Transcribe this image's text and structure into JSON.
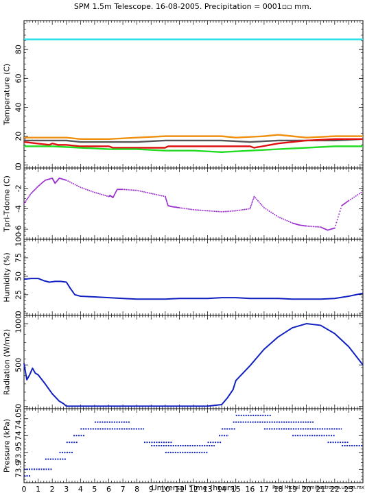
{
  "title": "SPM 1.5m Telescope. 16-08-2005. Precipitation = 0001▫▫ mm.",
  "credit": "Raul Michel (rmm@astrosen.unam.mx)",
  "colors": {
    "cyan": "#22e0e8",
    "orange": "#f09010",
    "gray": "#555555",
    "red": "#dd1111",
    "green": "#22dd22",
    "purple": "#9a30d0",
    "blue": "#1020c0"
  },
  "chart_data": [
    {
      "type": "line",
      "ylabel": "Temperature (C)",
      "ylim": [
        -2,
        100
      ],
      "yticks": [
        0,
        20,
        40,
        60,
        80
      ],
      "xlim": [
        0,
        24
      ],
      "series": [
        {
          "color_key": "cyan",
          "x": [
            0,
            24
          ],
          "y": [
            87,
            87
          ]
        },
        {
          "color_key": "orange",
          "x": [
            0,
            3,
            4,
            6,
            8,
            10,
            12,
            14,
            15,
            17,
            18,
            19,
            20,
            22,
            24
          ],
          "y": [
            19,
            19,
            18,
            18,
            19,
            20,
            20,
            20,
            19,
            20,
            21,
            20,
            19,
            20,
            20
          ]
        },
        {
          "color_key": "gray",
          "x": [
            0,
            3,
            4,
            6,
            8,
            10,
            12,
            14,
            16,
            18,
            20,
            22,
            24
          ],
          "y": [
            17,
            17,
            16,
            16,
            16,
            17,
            17,
            17,
            16,
            17,
            17,
            17,
            18
          ]
        },
        {
          "color_key": "red",
          "x": [
            0,
            1.8,
            2,
            2.4,
            3,
            4,
            6,
            6.3,
            7,
            10,
            10.2,
            12,
            14,
            16,
            16.3,
            18,
            20,
            22,
            24
          ],
          "y": [
            16,
            14,
            15,
            14,
            14,
            13,
            13,
            12,
            12,
            12,
            13,
            13,
            13,
            13,
            12,
            15,
            17,
            18,
            18
          ]
        },
        {
          "color_key": "green",
          "x": [
            0,
            2,
            4,
            6,
            8,
            10,
            12,
            14,
            16,
            18,
            20,
            22,
            24
          ],
          "y": [
            13,
            13,
            12,
            11,
            11,
            10,
            10,
            9,
            10,
            11,
            12,
            13,
            13
          ]
        }
      ]
    },
    {
      "type": "scatter",
      "ylabel": "Tpri-Tdome (C)",
      "ylim": [
        -7,
        0
      ],
      "yticks": [
        0,
        -2,
        -4,
        -6
      ],
      "xlim": [
        0,
        24
      ],
      "series": [
        {
          "color_key": "purple",
          "x": [
            0,
            0.5,
            1,
            1.5,
            2,
            2.2,
            2.5,
            3,
            4,
            5,
            6,
            6.1,
            6.3,
            6.6,
            7,
            8,
            9,
            10,
            10.2,
            10.5,
            11,
            12,
            13,
            14,
            15,
            16,
            16.3,
            17,
            18,
            19,
            19.5,
            20,
            21,
            21.5,
            22,
            22.5,
            23,
            24
          ],
          "y": [
            -3.5,
            -2.5,
            -1.8,
            -1.2,
            -1.0,
            -1.5,
            -1.0,
            -1.2,
            -1.9,
            -2.4,
            -2.8,
            -2.7,
            -2.9,
            -2.1,
            -2.1,
            -2.2,
            -2.5,
            -2.8,
            -3.7,
            -3.8,
            -3.9,
            -4.1,
            -4.2,
            -4.3,
            -4.2,
            -4.0,
            -2.8,
            -3.9,
            -4.8,
            -5.4,
            -5.6,
            -5.7,
            -5.8,
            -6.1,
            -5.9,
            -3.7,
            -3.2,
            -2.3
          ]
        }
      ]
    },
    {
      "type": "line",
      "ylabel": "Humidity (%)",
      "ylim": [
        -3,
        100
      ],
      "yticks": [
        0,
        25,
        50,
        75,
        100
      ],
      "xlim": [
        0,
        24
      ],
      "series": [
        {
          "color_key": "blue",
          "x": [
            0,
            0.5,
            1,
            1.4,
            1.8,
            2.2,
            2.6,
            3.0,
            3.3,
            3.6,
            4,
            5,
            6,
            7,
            8,
            9,
            10,
            11,
            12,
            13,
            14,
            15,
            16,
            17,
            18,
            19,
            20,
            21,
            22,
            23,
            24
          ],
          "y": [
            46,
            47,
            47,
            44,
            42,
            43,
            43,
            42,
            33,
            25,
            23,
            22,
            21,
            20,
            19,
            19,
            19,
            20,
            20,
            20,
            21,
            21,
            20,
            20,
            20,
            19,
            19,
            19,
            20,
            23,
            27
          ]
        }
      ]
    },
    {
      "type": "line",
      "ylabel": "Radiation (W/m2)",
      "ylim": [
        -30,
        1100
      ],
      "yticks": [
        0,
        500,
        1000
      ],
      "xlim": [
        0,
        24
      ],
      "series": [
        {
          "color_key": "blue",
          "x": [
            0,
            0.2,
            0.4,
            0.6,
            0.8,
            1.0,
            1.5,
            2.0,
            2.5,
            2.8,
            3.0,
            5,
            8,
            11,
            13,
            14,
            14.4,
            14.8,
            15,
            16,
            17,
            18,
            19,
            20,
            21,
            22,
            23,
            24
          ],
          "y": [
            520,
            320,
            380,
            460,
            400,
            380,
            270,
            150,
            60,
            30,
            0,
            0,
            0,
            0,
            0,
            20,
            100,
            200,
            310,
            490,
            690,
            840,
            950,
            1000,
            980,
            880,
            720,
            500
          ]
        }
      ]
    },
    {
      "type": "step",
      "ylabel": "Pressure (kPa)",
      "ylim": [
        73.86,
        74.08
      ],
      "yticks": [
        73.9,
        73.95,
        74.0,
        74.05
      ],
      "ytick_labels": [
        "73.9",
        "73.95",
        "74",
        "74.05"
      ],
      "xlabel": "Universal Time (hours)",
      "xlim": [
        0,
        24
      ],
      "xticks": [
        0,
        1,
        2,
        3,
        4,
        5,
        6,
        7,
        8,
        9,
        10,
        11,
        12,
        13,
        14,
        15,
        16,
        17,
        18,
        19,
        20,
        21,
        22,
        23
      ],
      "series": [
        {
          "color_key": "blue",
          "segments": [
            {
              "x0": 0,
              "x1": 0.5,
              "y": 73.88
            },
            {
              "x0": 0,
              "x1": 2.0,
              "y": 73.9
            },
            {
              "x0": 1.5,
              "x1": 3.0,
              "y": 73.93
            },
            {
              "x0": 2.5,
              "x1": 3.5,
              "y": 73.95
            },
            {
              "x0": 3.0,
              "x1": 3.8,
              "y": 73.98
            },
            {
              "x0": 3.5,
              "x1": 4.3,
              "y": 74.0
            },
            {
              "x0": 4.0,
              "x1": 8.5,
              "y": 74.02
            },
            {
              "x0": 5.0,
              "x1": 7.5,
              "y": 74.04
            },
            {
              "x0": 8.5,
              "x1": 10.5,
              "y": 73.98
            },
            {
              "x0": 9.0,
              "x1": 13.5,
              "y": 73.97
            },
            {
              "x0": 10.0,
              "x1": 13.0,
              "y": 73.95
            },
            {
              "x0": 13.0,
              "x1": 14.0,
              "y": 73.98
            },
            {
              "x0": 13.8,
              "x1": 14.5,
              "y": 74.0
            },
            {
              "x0": 14.0,
              "x1": 15.0,
              "y": 74.02
            },
            {
              "x0": 14.8,
              "x1": 20.5,
              "y": 74.04
            },
            {
              "x0": 15.0,
              "x1": 17.5,
              "y": 74.06
            },
            {
              "x0": 17.0,
              "x1": 22.5,
              "y": 74.02
            },
            {
              "x0": 19.0,
              "x1": 22.0,
              "y": 74.0
            },
            {
              "x0": 21.5,
              "x1": 23.0,
              "y": 73.98
            },
            {
              "x0": 22.5,
              "x1": 24.0,
              "y": 73.97
            }
          ]
        }
      ]
    }
  ]
}
